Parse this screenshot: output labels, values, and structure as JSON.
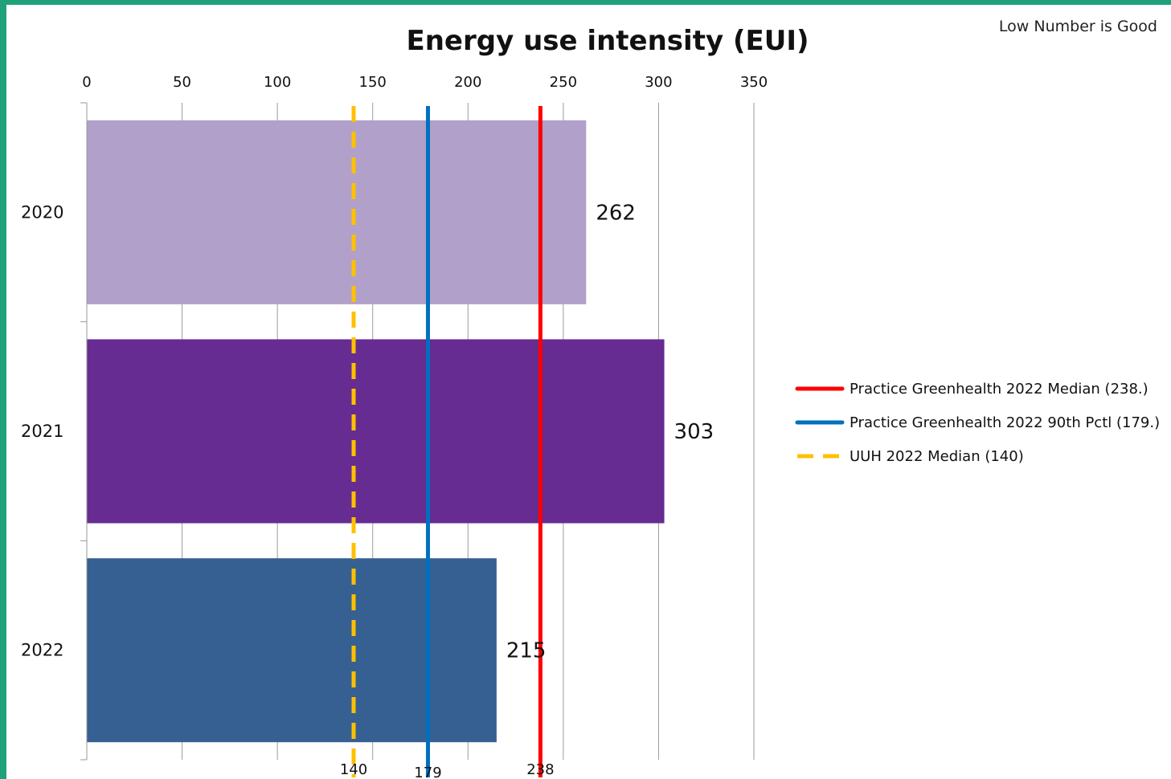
{
  "note": "Low Number is Good",
  "chart_data": {
    "type": "bar",
    "orientation": "horizontal",
    "title": "Energy use intensity (EUI)",
    "xlabel": "",
    "ylabel": "",
    "xlim": [
      0,
      350
    ],
    "xticks": [
      0,
      50,
      100,
      150,
      200,
      250,
      300,
      350
    ],
    "x_axis_position": "top",
    "grid": true,
    "categories": [
      "2020",
      "2021",
      "2022"
    ],
    "values": [
      262,
      303,
      215
    ],
    "data_labels": [
      "262",
      "303",
      "215"
    ],
    "bar_colors": [
      "#b1a0c9",
      "#662c91",
      "#366092"
    ],
    "reference_lines": [
      {
        "name": "Practice Greenhealth 2022 Median (238.)",
        "value": 238,
        "label": "238",
        "color": "#ff0000",
        "style": "solid"
      },
      {
        "name": "Practice Greenhealth 2022 90th Pctl (179.)",
        "value": 179,
        "label": "179",
        "color": "#0070c0",
        "style": "solid"
      },
      {
        "name": "UUH 2022 Median (140)",
        "value": 140,
        "label": "140",
        "color": "#ffc000",
        "style": "dashed"
      }
    ],
    "legend_position": "right"
  }
}
